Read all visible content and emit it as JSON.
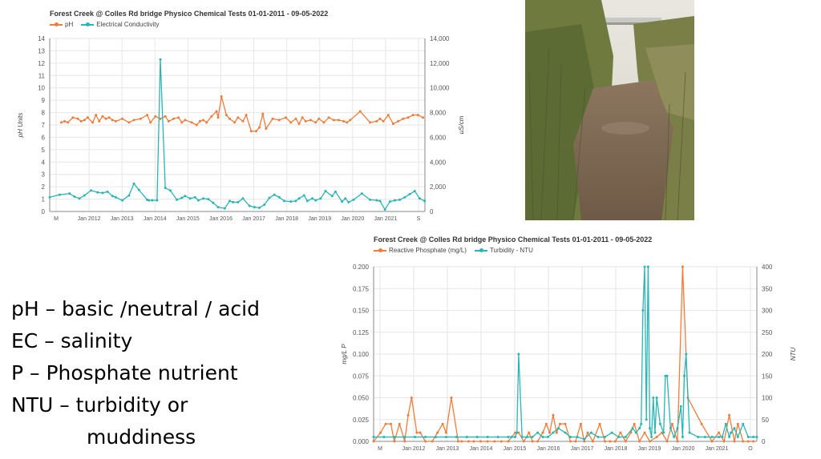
{
  "colors": {
    "orange": "#f07c3a",
    "teal": "#2ab5b5",
    "grid": "#e6e6e6",
    "axis": "#888888"
  },
  "notes": {
    "line1": "pH – basic /neutral / acid",
    "line2": "EC – salinity",
    "line3": "P – Phosphate nutrient",
    "line4": "NTU – turbidity or",
    "line5": "muddiness"
  },
  "photo": {
    "icon": "creek-photo"
  },
  "chart_data": [
    {
      "type": "line",
      "title": "Forest Creek @ Colles Rd bridge Physico Chemical Tests 01-01-2011 - 09-05-2022",
      "ylabel": "pH Units",
      "y2label": "µS/cm",
      "ylim": [
        0,
        14
      ],
      "y2lim": [
        0,
        14000
      ],
      "yticks": [
        "0",
        "1",
        "2",
        "3",
        "4",
        "5",
        "6",
        "7",
        "8",
        "9",
        "10",
        "11",
        "12",
        "13",
        "14"
      ],
      "y2ticks": [
        "0",
        "2,000",
        "4,000",
        "6,000",
        "8,000",
        "10,000",
        "12,000",
        "14,000"
      ],
      "xticks": [
        "M",
        "Jan 2012",
        "Jan 2013",
        "Jan 2014",
        "Jan 2015",
        "Jan 2016",
        "Jan 2017",
        "Jan 2018",
        "Jan 2019",
        "Jan 2020",
        "Jan 2021",
        "S"
      ],
      "xlim": [
        2011.0,
        2022.36
      ],
      "grid": true,
      "legend": "top-left",
      "series": [
        {
          "name": "pH",
          "axis": "left",
          "color": "#f07c3a",
          "x": [
            2011.35,
            2011.45,
            2011.55,
            2011.7,
            2011.85,
            2011.95,
            2012.05,
            2012.15,
            2012.3,
            2012.4,
            2012.5,
            2012.6,
            2012.7,
            2012.8,
            2012.9,
            2013.0,
            2013.2,
            2013.4,
            2013.55,
            2013.75,
            2013.95,
            2014.05,
            2014.2,
            2014.35,
            2014.5,
            2014.6,
            2014.75,
            2014.9,
            2015.0,
            2015.1,
            2015.3,
            2015.45,
            2015.55,
            2015.65,
            2015.75,
            2015.9,
            2016.05,
            2016.1,
            2016.2,
            2016.35,
            2016.45,
            2016.6,
            2016.7,
            2016.85,
            2016.95,
            2017.1,
            2017.25,
            2017.35,
            2017.45,
            2017.55,
            2017.75,
            2017.95,
            2018.15,
            2018.3,
            2018.45,
            2018.55,
            2018.65,
            2018.75,
            2018.9,
            2019.05,
            2019.15,
            2019.3,
            2019.45,
            2019.6,
            2019.75,
            2019.9,
            2020.0,
            2020.1,
            2020.4,
            2020.7,
            2020.9,
            2021.0,
            2021.1,
            2021.25,
            2021.4,
            2021.55,
            2021.7,
            2021.85,
            2022.0,
            2022.15,
            2022.3
          ],
          "values": [
            7.2,
            7.3,
            7.2,
            7.6,
            7.5,
            7.3,
            7.4,
            7.6,
            7.2,
            7.8,
            7.3,
            7.7,
            7.5,
            7.6,
            7.4,
            7.3,
            7.5,
            7.2,
            7.4,
            7.5,
            7.8,
            7.2,
            7.7,
            7.5,
            7.7,
            7.3,
            7.5,
            7.6,
            7.2,
            7.4,
            7.2,
            7.0,
            7.3,
            7.4,
            7.2,
            7.7,
            8.1,
            7.6,
            9.3,
            7.8,
            7.5,
            7.2,
            7.6,
            7.3,
            7.8,
            6.5,
            6.5,
            6.8,
            7.9,
            6.7,
            7.5,
            7.4,
            7.6,
            7.2,
            7.5,
            7.1,
            7.6,
            7.3,
            7.4,
            7.2,
            7.5,
            7.2,
            7.6,
            7.4,
            7.4,
            7.3,
            7.2,
            7.4,
            8.1,
            7.2,
            7.3,
            7.5,
            7.3,
            7.8,
            7.1,
            7.3,
            7.5,
            7.6,
            7.8,
            7.8,
            7.6
          ]
        },
        {
          "name": "Electrical Conductivity",
          "axis": "right",
          "color": "#2ab5b5",
          "x": [
            2011.0,
            2011.3,
            2011.6,
            2011.75,
            2011.9,
            2012.05,
            2012.25,
            2012.45,
            2012.6,
            2012.75,
            2012.9,
            2013.0,
            2013.2,
            2013.4,
            2013.55,
            2013.7,
            2013.95,
            2014.0,
            2014.1,
            2014.25,
            2014.35,
            2014.5,
            2014.65,
            2014.85,
            2015.0,
            2015.1,
            2015.25,
            2015.4,
            2015.5,
            2015.65,
            2015.8,
            2015.95,
            2016.1,
            2016.3,
            2016.45,
            2016.55,
            2016.7,
            2016.85,
            2017.05,
            2017.2,
            2017.35,
            2017.5,
            2017.65,
            2017.8,
            2017.95,
            2018.1,
            2018.3,
            2018.45,
            2018.55,
            2018.7,
            2018.8,
            2018.95,
            2019.05,
            2019.2,
            2019.35,
            2019.55,
            2019.65,
            2019.85,
            2019.95,
            2020.05,
            2020.2,
            2020.45,
            2020.7,
            2020.9,
            2021.0,
            2021.15,
            2021.3,
            2021.45,
            2021.6,
            2021.75,
            2021.9,
            2022.05,
            2022.2,
            2022.35
          ],
          "values": [
            1150,
            1350,
            1450,
            1200,
            1050,
            1300,
            1700,
            1550,
            1500,
            1600,
            1250,
            1150,
            900,
            1300,
            2250,
            1750,
            950,
            900,
            900,
            900,
            12300,
            1900,
            1700,
            950,
            1100,
            1250,
            1050,
            1150,
            900,
            1050,
            1000,
            700,
            350,
            250,
            850,
            750,
            750,
            1050,
            450,
            350,
            300,
            550,
            1100,
            1350,
            1150,
            850,
            800,
            850,
            1050,
            1300,
            850,
            1050,
            900,
            1050,
            1650,
            1250,
            1600,
            800,
            1050,
            750,
            950,
            1450,
            950,
            900,
            850,
            150,
            800,
            900,
            950,
            1150,
            1400,
            1650,
            1050,
            850
          ]
        }
      ]
    },
    {
      "type": "line",
      "title": "Forest Creek @ Colles Rd bridge Physico Chemical Tests 01-01-2011 - 09-05-2022",
      "ylabel": "mg/L P",
      "y2label": "NTU",
      "ylim": [
        0,
        0.2
      ],
      "y2lim": [
        0,
        400
      ],
      "yticks": [
        "0.000",
        "0.025",
        "0.050",
        "0.075",
        "0.100",
        "0.125",
        "0.150",
        "0.175",
        "0.200"
      ],
      "y2ticks": [
        "0",
        "50",
        "100",
        "150",
        "200",
        "250",
        "300",
        "350",
        "400"
      ],
      "xticks": [
        "M",
        "Jan 2012",
        "Jan 2013",
        "Jan 2014",
        "Jan 2015",
        "Jan 2016",
        "Jan 2017",
        "Jan 2018",
        "Jan 2019",
        "Jan 2020",
        "Jan 2021",
        "O"
      ],
      "xlim": [
        2011.0,
        2022.1
      ],
      "grid": true,
      "legend": "top-left",
      "series": [
        {
          "name": "Reactive Phosphate (mg/L)",
          "axis": "left",
          "color": "#f07c3a",
          "x": [
            2011.0,
            2011.2,
            2011.35,
            2011.5,
            2011.6,
            2011.75,
            2011.9,
            2012.0,
            2012.1,
            2012.25,
            2012.35,
            2012.5,
            2012.7,
            2012.85,
            2013.0,
            2013.1,
            2013.25,
            2013.45,
            2013.55,
            2013.75,
            2013.9,
            2014.1,
            2014.3,
            2014.5,
            2014.7,
            2014.9,
            2015.1,
            2015.2,
            2015.35,
            2015.5,
            2015.6,
            2015.75,
            2015.9,
            2016.0,
            2016.1,
            2016.2,
            2016.3,
            2016.4,
            2016.55,
            2016.7,
            2016.85,
            2017.0,
            2017.1,
            2017.2,
            2017.35,
            2017.55,
            2017.7,
            2017.85,
            2018.0,
            2018.15,
            2018.3,
            2018.45,
            2018.55,
            2018.7,
            2018.85,
            2019.0,
            2019.2,
            2019.35,
            2019.5,
            2019.65,
            2019.8,
            2019.95,
            2020.1,
            2020.5,
            2020.8,
            2021.0,
            2021.15,
            2021.3,
            2021.45,
            2021.55,
            2021.7,
            2021.85,
            2022.0
          ],
          "values": [
            0.0,
            0.01,
            0.02,
            0.02,
            0.0,
            0.02,
            0.0,
            0.03,
            0.05,
            0.01,
            0.01,
            0.0,
            0.0,
            0.01,
            0.02,
            0.01,
            0.05,
            0.0,
            0.0,
            0.0,
            0.0,
            0.0,
            0.0,
            0.0,
            0.0,
            0.0,
            0.01,
            0.01,
            0.0,
            0.01,
            0.0,
            0.0,
            0.01,
            0.02,
            0.01,
            0.03,
            0.01,
            0.02,
            0.02,
            0.0,
            0.0,
            0.02,
            0.0,
            0.01,
            0.0,
            0.02,
            0.0,
            0.0,
            0.0,
            0.01,
            0.0,
            0.01,
            0.02,
            0.0,
            0.01,
            0.0,
            0.005,
            0.01,
            0.0,
            0.02,
            0.0,
            0.2,
            0.05,
            0.02,
            0.0,
            0.01,
            0.0,
            0.03,
            0.0,
            0.02,
            0.0,
            0.0,
            0.0
          ]
        },
        {
          "name": "Turbidity - NTU",
          "axis": "right",
          "color": "#2ab5b5",
          "x": [
            2011.0,
            2011.3,
            2011.6,
            2011.9,
            2012.2,
            2012.5,
            2012.8,
            2013.1,
            2013.4,
            2013.7,
            2014.0,
            2014.3,
            2014.6,
            2014.9,
            2015.0,
            2015.1,
            2015.15,
            2015.2,
            2015.3,
            2015.45,
            2015.6,
            2015.75,
            2015.9,
            2016.05,
            2016.2,
            2016.35,
            2016.55,
            2016.7,
            2016.9,
            2017.1,
            2017.3,
            2017.5,
            2017.7,
            2017.9,
            2018.1,
            2018.3,
            2018.5,
            2018.6,
            2018.7,
            2018.75,
            2018.8,
            2018.85,
            2018.9,
            2018.95,
            2019.0,
            2019.05,
            2019.1,
            2019.15,
            2019.2,
            2019.3,
            2019.4,
            2019.45,
            2019.5,
            2019.6,
            2019.7,
            2019.8,
            2019.9,
            2019.95,
            2020.0,
            2020.05,
            2020.15,
            2020.4,
            2020.6,
            2020.8,
            2021.0,
            2021.1,
            2021.2,
            2021.3,
            2021.35,
            2021.45,
            2021.55,
            2021.7,
            2021.85,
            2022.0,
            2022.1
          ],
          "values": [
            10,
            10,
            10,
            10,
            10,
            10,
            10,
            10,
            10,
            10,
            10,
            10,
            10,
            10,
            10,
            10,
            20,
            200,
            10,
            10,
            10,
            20,
            10,
            10,
            20,
            30,
            20,
            10,
            10,
            5,
            20,
            10,
            10,
            20,
            10,
            10,
            30,
            20,
            30,
            40,
            300,
            400,
            50,
            400,
            30,
            10,
            100,
            20,
            100,
            40,
            20,
            150,
            150,
            30,
            10,
            30,
            80,
            10,
            150,
            200,
            20,
            10,
            10,
            10,
            10,
            10,
            40,
            10,
            20,
            30,
            10,
            40,
            10,
            10,
            10
          ]
        }
      ]
    }
  ]
}
